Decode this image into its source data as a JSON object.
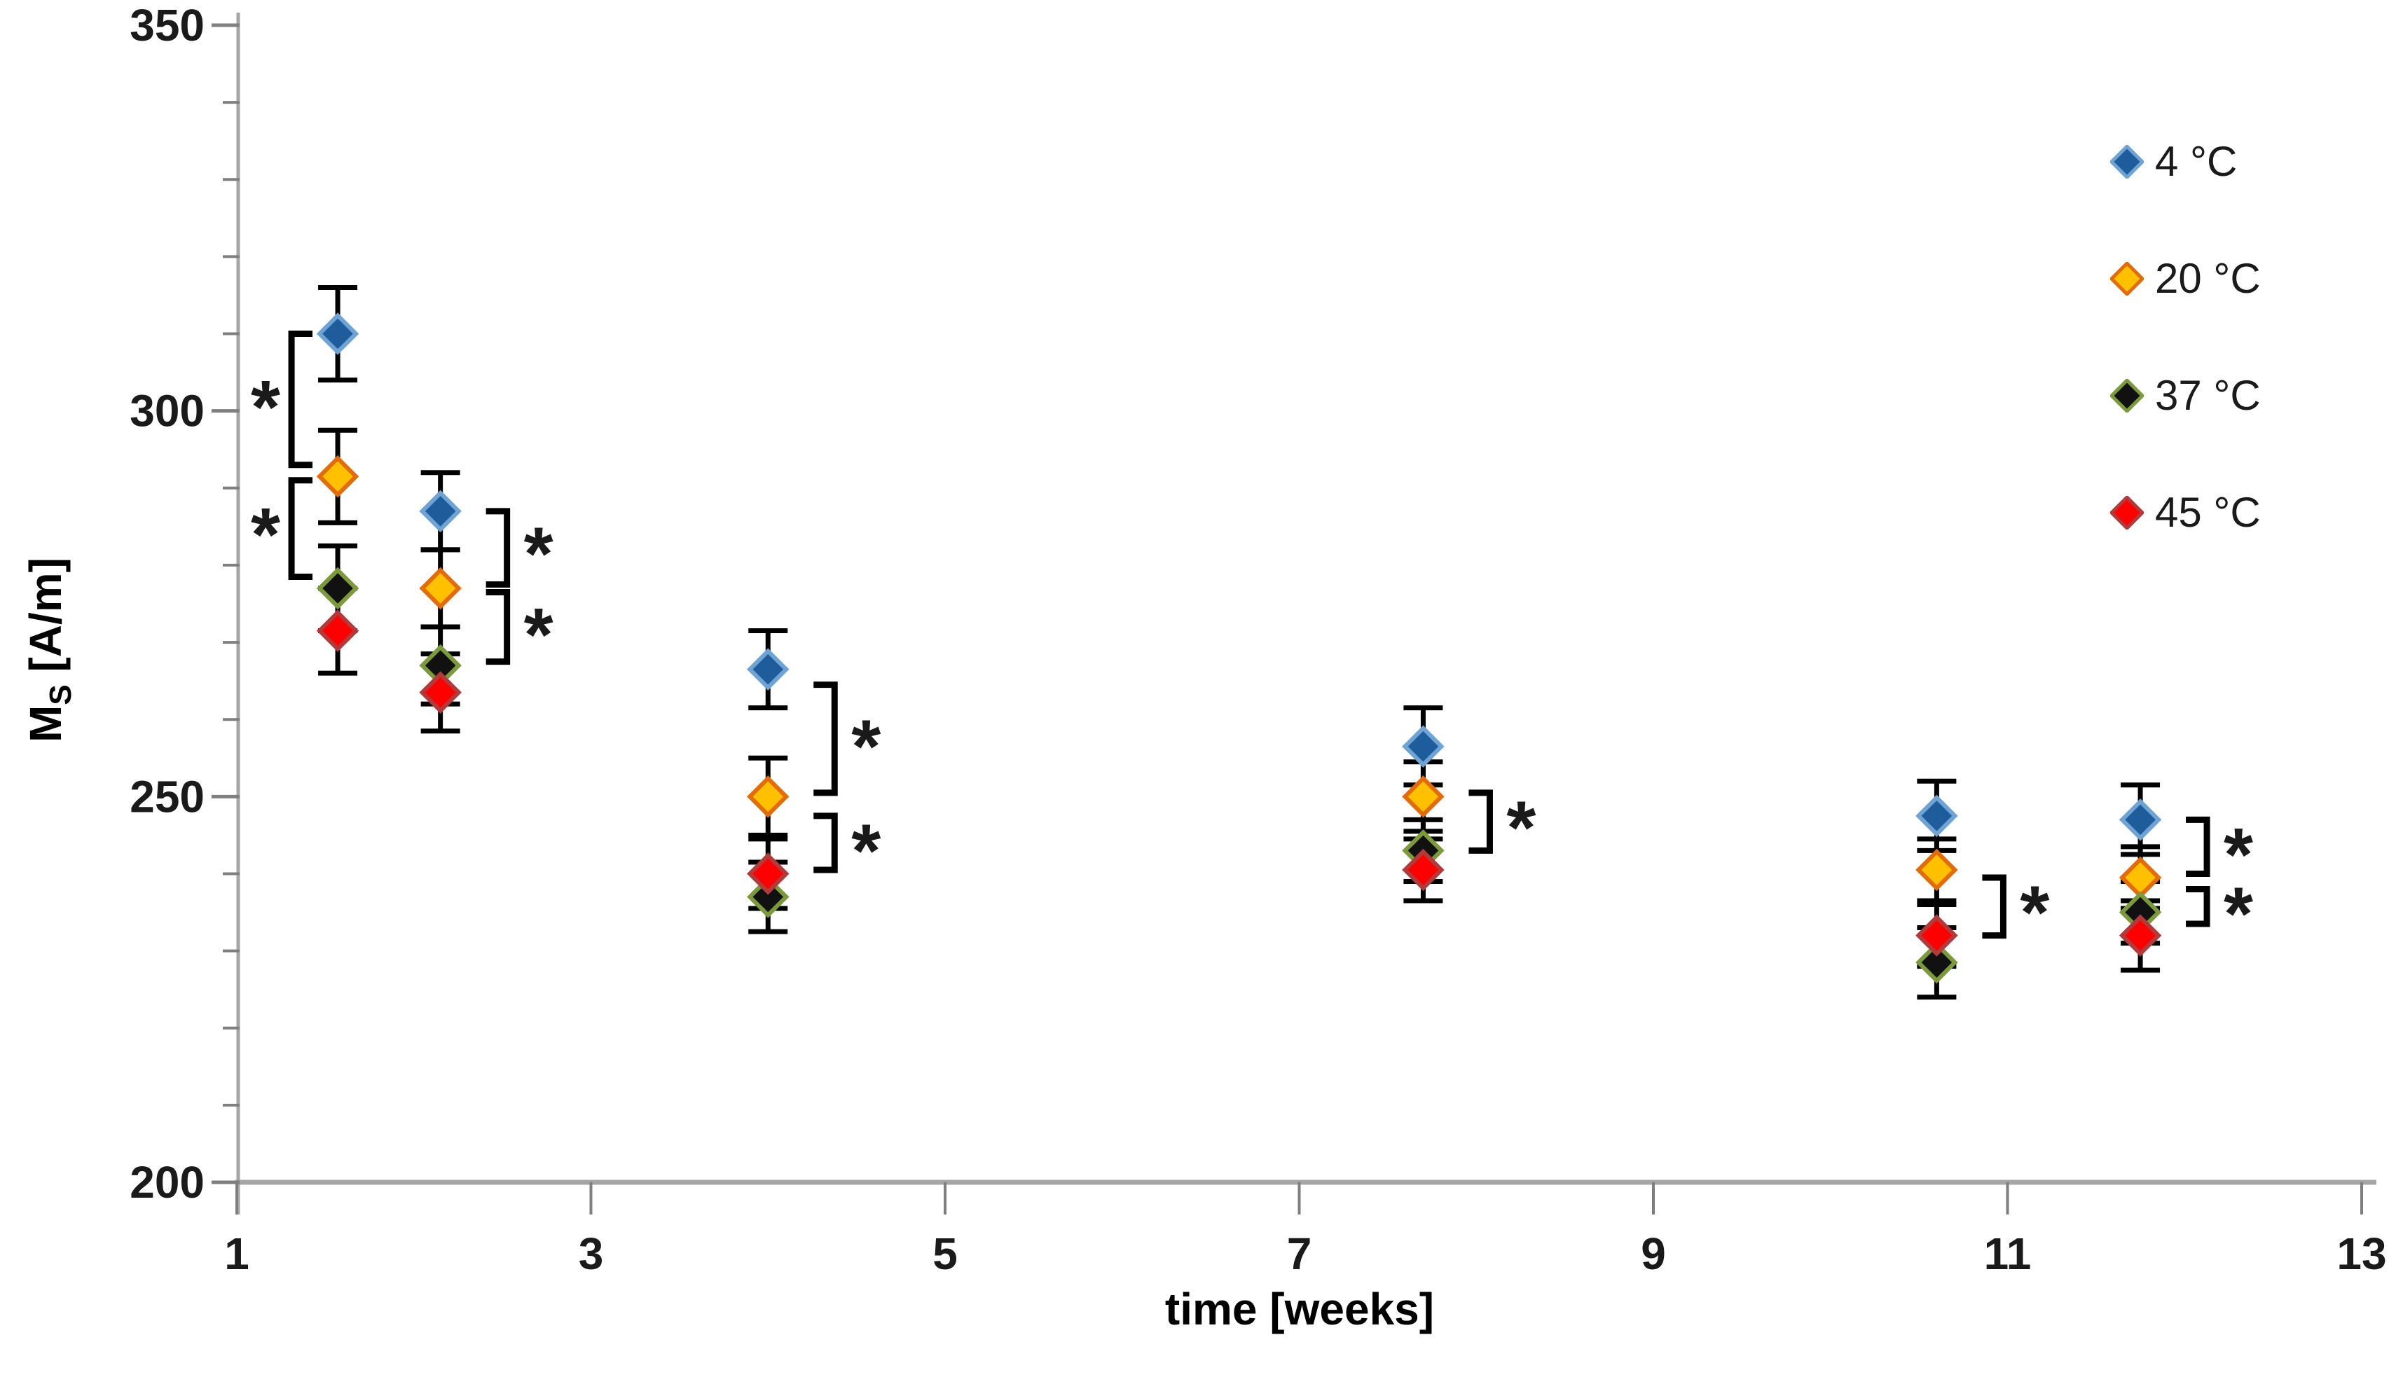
{
  "legend": {
    "items": [
      {
        "label": "4 °C",
        "color": "#1f5c9b",
        "border": "#6fa3d3"
      },
      {
        "label": "20 °C",
        "color": "#ffc000",
        "border": "#e36c0a"
      },
      {
        "label": "37 °C",
        "color": "#111111",
        "border": "#7a9a3c"
      },
      {
        "label": "45 °C",
        "color": "#ff0000",
        "border": "#b23a3a"
      }
    ]
  },
  "axes": {
    "x_title": "time [weeks]",
    "y_title_main": "M",
    "y_title_sub": "S",
    "y_title_unit": " [A/m]",
    "x_ticks": [
      1,
      3,
      5,
      7,
      9,
      11,
      13
    ],
    "y_ticks": [
      200,
      250,
      300,
      350
    ],
    "y_minor_step": 10,
    "x_range": [
      1,
      13
    ],
    "y_range": [
      200,
      350
    ]
  },
  "star_symbol": "*",
  "chart_data": {
    "type": "scatter",
    "title": "",
    "xlabel": "time [weeks]",
    "ylabel": "Ms [A/m]",
    "xlim": [
      1,
      13
    ],
    "ylim": [
      200,
      350
    ],
    "grid": false,
    "legend_position": "top-right",
    "x": [
      1.57,
      2.15,
      4.0,
      7.7,
      10.6,
      11.75
    ],
    "series": [
      {
        "name": "4 °C",
        "color": "#1f5c9b",
        "border": "#6fa3d3",
        "values": [
          310,
          287,
          266.5,
          256.5,
          247.5,
          247
        ],
        "errors": [
          6,
          5,
          5,
          5,
          4.5,
          4.5
        ]
      },
      {
        "name": "20 °C",
        "color": "#ffc000",
        "border": "#e36c0a",
        "values": [
          291.5,
          277,
          250,
          250,
          240.5,
          239.5
        ],
        "errors": [
          6,
          5,
          5,
          4.5,
          4,
          4
        ]
      },
      {
        "name": "37 °C",
        "color": "#111111",
        "border": "#7a9a3c",
        "values": [
          277,
          267,
          237,
          243,
          228.5,
          235
        ],
        "errors": [
          5.5,
          5,
          4.5,
          4,
          4.5,
          4
        ]
      },
      {
        "name": "45 °C",
        "color": "#ff0000",
        "border": "#b23a3a",
        "values": [
          271.5,
          263.5,
          240,
          240.5,
          232,
          232
        ],
        "errors": [
          5.5,
          5,
          4.5,
          4,
          4,
          4.5
        ]
      }
    ],
    "significance_brackets": [
      {
        "week": 1.57,
        "side": "left",
        "top": 310,
        "bottom": 293,
        "star": 301.5
      },
      {
        "week": 1.57,
        "side": "left",
        "top": 291,
        "bottom": 278.5,
        "star": 285
      },
      {
        "week": 2.15,
        "side": "right",
        "top": 287,
        "bottom": 277.5,
        "star": 282.5
      },
      {
        "week": 2.15,
        "side": "right",
        "top": 276.5,
        "bottom": 267.5,
        "star": 272
      },
      {
        "week": 4.0,
        "side": "right",
        "top": 264.5,
        "bottom": 250.5,
        "star": 257.5
      },
      {
        "week": 4.0,
        "side": "right",
        "top": 247.5,
        "bottom": 240.5,
        "star": 244
      },
      {
        "week": 7.7,
        "side": "right",
        "top": 250.5,
        "bottom": 243,
        "star": 247
      },
      {
        "week": 10.6,
        "side": "right",
        "top": 239.5,
        "bottom": 232,
        "star": 236
      },
      {
        "week": 11.75,
        "side": "right",
        "top": 247,
        "bottom": 240,
        "star": 243.5
      },
      {
        "week": 11.75,
        "side": "right",
        "top": 238,
        "bottom": 233.5,
        "star": 235.8
      }
    ]
  }
}
